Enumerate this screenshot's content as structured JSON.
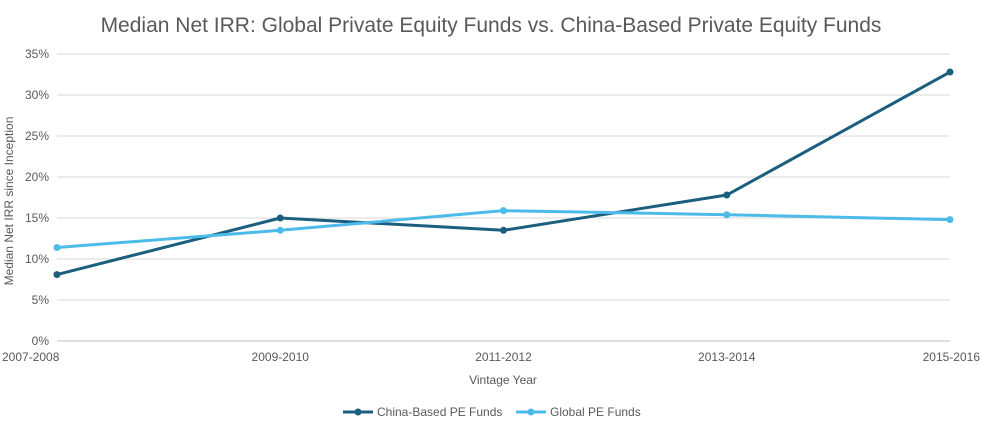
{
  "chart_data": {
    "type": "line",
    "title": "Median Net IRR: Global Private Equity Funds vs. China-Based Private Equity Funds",
    "xlabel": "Vintage Year",
    "ylabel": "Median Net IRR since Inception",
    "categories": [
      "2007-2008",
      "2009-2010",
      "2011-2012",
      "2013-2014",
      "2015-2016"
    ],
    "series": [
      {
        "name": "China-Based PE Funds",
        "values": [
          8.1,
          15.0,
          13.5,
          17.8,
          32.8
        ],
        "color": "#1b5e7e"
      },
      {
        "name": "Global PE Funds",
        "values": [
          11.4,
          13.5,
          15.9,
          15.4,
          14.8
        ],
        "color": "#4dbbea"
      }
    ],
    "ylim": [
      0,
      35
    ],
    "yticks": [
      0,
      5,
      10,
      15,
      20,
      25,
      30,
      35
    ],
    "ytick_labels": [
      "0%",
      "5%",
      "10%",
      "15%",
      "20%",
      "25%",
      "30%",
      "35%"
    ],
    "grid": true,
    "legend_position": "bottom",
    "colors": {
      "grid": "#d9d9d9",
      "axis": "#bfbfbf",
      "text": "#595959",
      "title": "#595959"
    }
  }
}
